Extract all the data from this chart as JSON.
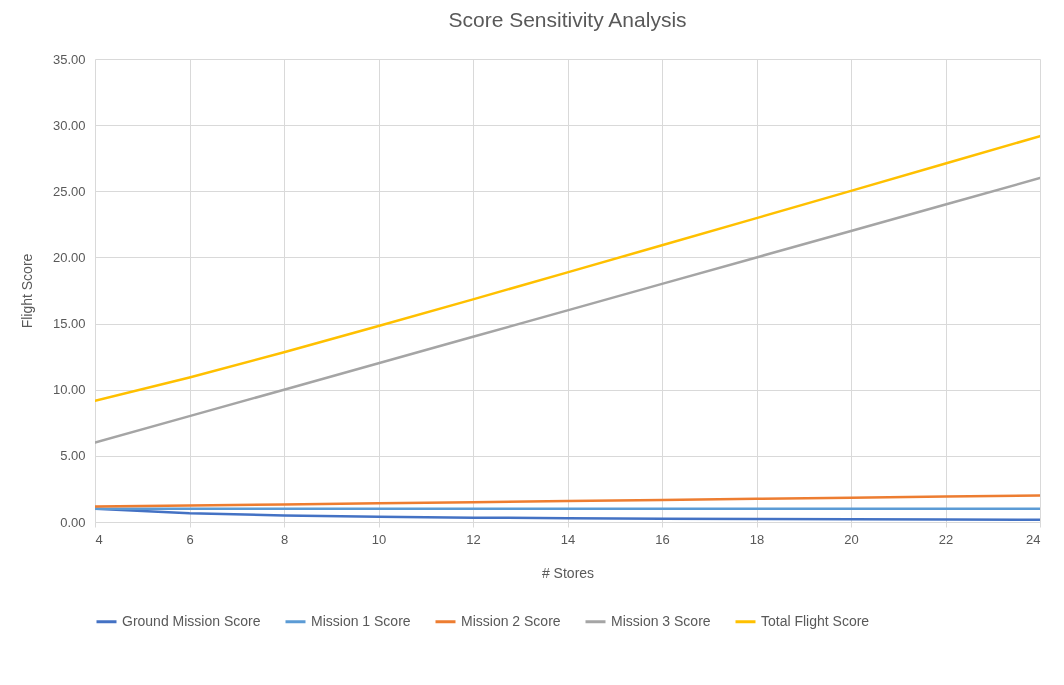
{
  "chart_data": {
    "type": "line",
    "title": "Score Sensitivity Analysis",
    "xlabel": "# Stores",
    "ylabel": "Flight Score",
    "x": [
      4,
      6,
      8,
      10,
      12,
      14,
      16,
      18,
      20,
      22,
      24
    ],
    "series": [
      {
        "name": "Ground Mission Score",
        "color": "#4472c4",
        "values": [
          1,
          0.67,
          0.5,
          0.4,
          0.33,
          0.29,
          0.25,
          0.22,
          0.2,
          0.18,
          0.17
        ]
      },
      {
        "name": "Mission 1 Score",
        "color": "#5b9bd5",
        "values": [
          1,
          1,
          1,
          1,
          1,
          1,
          1,
          1,
          1,
          1,
          1
        ]
      },
      {
        "name": "Mission 2 Score",
        "color": "#ed7d31",
        "values": [
          1.17,
          1.25,
          1.33,
          1.42,
          1.5,
          1.58,
          1.67,
          1.75,
          1.83,
          1.92,
          2
        ]
      },
      {
        "name": "Mission 3 Score",
        "color": "#a5a5a5",
        "values": [
          6,
          8,
          10,
          12,
          14,
          16,
          18,
          20,
          22,
          24,
          26
        ]
      },
      {
        "name": "Total Flight Score",
        "color": "#ffc000",
        "values": [
          9.17,
          10.92,
          12.83,
          14.82,
          16.83,
          18.87,
          20.92,
          22.97,
          25.03,
          27.1,
          29.17
        ]
      }
    ],
    "xlim": [
      4,
      24
    ],
    "xticks": [
      4,
      6,
      8,
      10,
      12,
      14,
      16,
      18,
      20,
      22,
      24
    ],
    "ylim": [
      0,
      35
    ],
    "yticks": [
      {
        "value": 0,
        "label": "0.00"
      },
      {
        "value": 5,
        "label": "5.00"
      },
      {
        "value": 10,
        "label": "10.00"
      },
      {
        "value": 15,
        "label": "15.00"
      },
      {
        "value": 20,
        "label": "20.00"
      },
      {
        "value": 25,
        "label": "25.00"
      },
      {
        "value": 30,
        "label": "30.00"
      },
      {
        "value": 35,
        "label": "35.00"
      }
    ],
    "grid": true,
    "legend": "bottom",
    "marker": "none",
    "line_style": "solid"
  }
}
